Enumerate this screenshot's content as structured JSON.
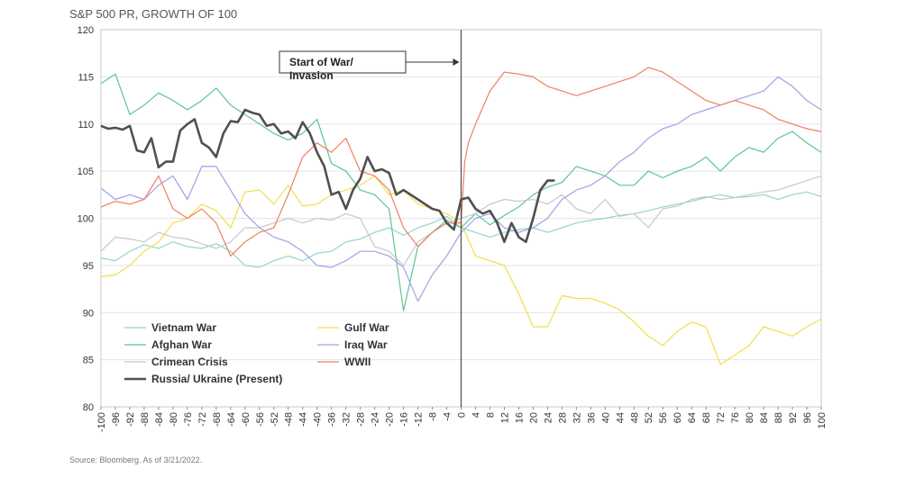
{
  "chart_data": {
    "type": "line",
    "title": "S&P 500 PR, GROWTH OF 100",
    "source": "Source: Bloomberg. As of 3/21/2022.",
    "annotation": [
      "Start of War/",
      "Invasion"
    ],
    "xlim": [
      -100,
      100
    ],
    "ylim": [
      80,
      120
    ],
    "yticks": [
      80,
      85,
      90,
      95,
      100,
      105,
      110,
      115,
      120
    ],
    "xticks": [
      -100,
      -96,
      -92,
      -88,
      -84,
      -80,
      -76,
      -72,
      -68,
      -64,
      -60,
      -56,
      -52,
      -48,
      -44,
      -40,
      -36,
      -32,
      -28,
      -24,
      -20,
      -16,
      -12,
      -8,
      -4,
      0,
      4,
      8,
      12,
      16,
      20,
      24,
      28,
      32,
      36,
      40,
      44,
      48,
      52,
      56,
      60,
      64,
      68,
      72,
      76,
      80,
      84,
      88,
      92,
      96,
      100
    ],
    "grid": "horizontal",
    "legend_position": "bottom-left",
    "series": [
      {
        "name": "Vietnam War",
        "color": "#8fd8c8",
        "width": 1.2,
        "x": [
          -100,
          -96,
          -92,
          -88,
          -84,
          -80,
          -76,
          -72,
          -68,
          -64,
          -60,
          -56,
          -52,
          -48,
          -44,
          -40,
          -36,
          -32,
          -28,
          -24,
          -20,
          -16,
          -12,
          -8,
          -4,
          0,
          4,
          8,
          12,
          16,
          20,
          24,
          28,
          32,
          36,
          40,
          44,
          48,
          52,
          56,
          60,
          64,
          68,
          72,
          76,
          80,
          84,
          88,
          92,
          96,
          100
        ],
        "y": [
          95.8,
          95.5,
          96.5,
          97.2,
          96.8,
          97.5,
          97.0,
          96.8,
          97.3,
          96.5,
          95.0,
          94.8,
          95.5,
          96.0,
          95.5,
          96.3,
          96.5,
          97.5,
          97.8,
          98.5,
          99.0,
          98.2,
          99.0,
          99.5,
          100.2,
          99.0,
          98.5,
          98.0,
          98.5,
          98.8,
          99.0,
          98.5,
          99.0,
          99.5,
          99.8,
          100.0,
          100.3,
          100.5,
          100.8,
          101.2,
          101.5,
          101.8,
          102.2,
          102.5,
          102.2,
          102.3,
          102.5,
          102.0,
          102.5,
          102.8,
          102.3
        ]
      },
      {
        "name": "Afghan War",
        "color": "#5cc494",
        "width": 1.2,
        "x": [
          -100,
          -96,
          -92,
          -88,
          -84,
          -80,
          -76,
          -72,
          -68,
          -64,
          -60,
          -56,
          -52,
          -48,
          -44,
          -40,
          -36,
          -32,
          -28,
          -24,
          -20,
          -16,
          -12,
          -8,
          -4,
          0,
          4,
          8,
          12,
          16,
          20,
          24,
          28,
          32,
          36,
          40,
          44,
          48,
          52,
          56,
          60,
          64,
          68,
          72,
          76,
          80,
          84,
          88,
          92,
          96,
          100
        ],
        "y": [
          114.3,
          115.3,
          111.0,
          112.0,
          113.3,
          112.5,
          111.5,
          112.5,
          113.8,
          112.0,
          111.0,
          110.0,
          109.0,
          108.3,
          109.0,
          110.5,
          105.8,
          105.0,
          103.0,
          102.5,
          101.0,
          90.2,
          97.0,
          98.5,
          99.8,
          99.0,
          100.5,
          99.3,
          100.3,
          101.2,
          102.5,
          103.3,
          103.8,
          105.5,
          105.0,
          104.5,
          103.5,
          103.5,
          105.0,
          104.3,
          105.0,
          105.5,
          106.5,
          105.0,
          106.5,
          107.5,
          107.0,
          108.5,
          109.2,
          108.0,
          107.0
        ]
      },
      {
        "name": "Crimean Crisis",
        "color": "#c8c8c8",
        "width": 1.2,
        "x": [
          -100,
          -96,
          -92,
          -88,
          -84,
          -80,
          -76,
          -72,
          -68,
          -64,
          -60,
          -56,
          -52,
          -48,
          -44,
          -40,
          -36,
          -32,
          -28,
          -24,
          -20,
          -16,
          -12,
          -8,
          -4,
          0,
          4,
          8,
          12,
          16,
          20,
          24,
          28,
          32,
          36,
          40,
          44,
          48,
          52,
          56,
          60,
          64,
          68,
          72,
          76,
          80,
          84,
          88,
          92,
          96,
          100
        ],
        "y": [
          96.5,
          98.0,
          97.8,
          97.5,
          98.5,
          98.0,
          97.8,
          97.3,
          96.8,
          97.5,
          99.0,
          99.0,
          99.5,
          100.0,
          99.5,
          100.0,
          99.8,
          100.5,
          100.0,
          97.0,
          96.5,
          95.0,
          97.5,
          98.5,
          99.5,
          100.0,
          100.5,
          101.5,
          102.0,
          101.8,
          102.0,
          101.5,
          102.5,
          101.0,
          100.5,
          102.0,
          100.2,
          100.5,
          99.0,
          101.0,
          101.3,
          102.0,
          102.3,
          102.0,
          102.2,
          102.5,
          102.8,
          103.0,
          103.5,
          104.0,
          104.5
        ]
      },
      {
        "name": "Gulf War",
        "color": "#f2de4b",
        "width": 1.2,
        "x": [
          -100,
          -96,
          -92,
          -88,
          -84,
          -80,
          -76,
          -72,
          -68,
          -64,
          -60,
          -56,
          -52,
          -48,
          -44,
          -40,
          -36,
          -32,
          -28,
          -24,
          -20,
          -16,
          -12,
          -8,
          -4,
          0,
          4,
          8,
          12,
          16,
          20,
          24,
          28,
          32,
          36,
          40,
          44,
          48,
          52,
          56,
          60,
          64,
          68,
          72,
          76,
          80,
          84,
          88,
          92,
          96,
          100
        ],
        "y": [
          93.8,
          94.0,
          95.0,
          96.5,
          97.5,
          99.5,
          100.0,
          101.5,
          100.8,
          99.0,
          102.8,
          103.0,
          101.5,
          103.5,
          101.3,
          101.5,
          102.5,
          103.0,
          103.5,
          104.5,
          102.5,
          103.0,
          101.5,
          101.0,
          100.5,
          99.5,
          96.0,
          95.5,
          95.0,
          92.0,
          88.5,
          88.5,
          91.8,
          91.5,
          91.5,
          91.0,
          90.3,
          89.0,
          87.5,
          86.5,
          88.0,
          89.0,
          88.5,
          84.5,
          85.5,
          86.5,
          88.5,
          88.0,
          87.5,
          88.5,
          89.3
        ]
      },
      {
        "name": "Iraq War",
        "color": "#a59ee8",
        "width": 1.2,
        "x": [
          -100,
          -96,
          -92,
          -88,
          -84,
          -80,
          -76,
          -72,
          -68,
          -64,
          -60,
          -56,
          -52,
          -48,
          -44,
          -40,
          -36,
          -32,
          -28,
          -24,
          -20,
          -16,
          -12,
          -8,
          -4,
          0,
          4,
          8,
          12,
          16,
          20,
          24,
          28,
          32,
          36,
          40,
          44,
          48,
          52,
          56,
          60,
          64,
          68,
          72,
          76,
          80,
          84,
          88,
          92,
          96,
          100
        ],
        "y": [
          103.2,
          102.0,
          102.5,
          102.0,
          103.5,
          104.5,
          102.0,
          105.5,
          105.5,
          103.0,
          100.5,
          99.0,
          98.0,
          97.5,
          96.5,
          95.0,
          94.8,
          95.5,
          96.5,
          96.5,
          96.0,
          94.8,
          91.2,
          94.0,
          96.0,
          98.5,
          100.0,
          100.5,
          99.0,
          98.5,
          99.0,
          100.0,
          102.0,
          103.0,
          103.5,
          104.5,
          106.0,
          107.0,
          108.5,
          109.5,
          110.0,
          111.0,
          111.5,
          112.0,
          112.5,
          113.0,
          113.5,
          115.0,
          114.0,
          112.5,
          111.5
        ]
      },
      {
        "name": "WWII",
        "color": "#f08060",
        "width": 1.2,
        "x": [
          -100,
          -96,
          -92,
          -88,
          -84,
          -80,
          -76,
          -72,
          -68,
          -64,
          -60,
          -56,
          -52,
          -48,
          -44,
          -40,
          -36,
          -32,
          -28,
          -24,
          -20,
          -16,
          -12,
          -8,
          -4,
          0,
          1,
          2,
          4,
          8,
          12,
          16,
          20,
          24,
          28,
          32,
          36,
          40,
          44,
          48,
          52,
          56,
          60,
          64,
          68,
          72,
          76,
          80,
          84,
          88,
          92,
          96,
          100
        ],
        "y": [
          101.2,
          101.8,
          101.5,
          102.0,
          104.5,
          101.0,
          100.0,
          101.0,
          99.5,
          96.0,
          97.5,
          98.5,
          99.0,
          102.5,
          106.5,
          108.0,
          107.0,
          108.5,
          105.0,
          104.5,
          103.0,
          99.0,
          97.0,
          98.5,
          99.5,
          99.5,
          106.0,
          108.0,
          110.0,
          113.5,
          115.5,
          115.3,
          115.0,
          114.0,
          113.5,
          113.0,
          113.5,
          114.0,
          114.5,
          115.0,
          116.0,
          115.5,
          114.5,
          113.5,
          112.5,
          112.0,
          112.5,
          112.0,
          111.5,
          110.5,
          110.0,
          109.5,
          109.2
        ]
      },
      {
        "name": "Russia/ Ukraine (Present)",
        "color": "#505050",
        "width": 2.6,
        "x": [
          -100,
          -98,
          -96,
          -94,
          -92,
          -90,
          -88,
          -86,
          -84,
          -82,
          -80,
          -78,
          -76,
          -74,
          -72,
          -70,
          -68,
          -66,
          -64,
          -62,
          -60,
          -58,
          -56,
          -54,
          -52,
          -50,
          -48,
          -46,
          -44,
          -42,
          -40,
          -38,
          -36,
          -34,
          -32,
          -30,
          -28,
          -26,
          -24,
          -22,
          -20,
          -18,
          -16,
          -14,
          -12,
          -10,
          -8,
          -6,
          -4,
          -2,
          0,
          2,
          4,
          6,
          8,
          10,
          12,
          14,
          16,
          18,
          20,
          22,
          24,
          26
        ],
        "y": [
          109.8,
          109.5,
          109.6,
          109.4,
          109.8,
          107.2,
          107.0,
          108.5,
          105.4,
          106.0,
          106.0,
          109.3,
          110.0,
          110.5,
          108.0,
          107.5,
          106.5,
          109.0,
          110.3,
          110.2,
          111.5,
          111.2,
          111.0,
          109.8,
          110.0,
          109.0,
          109.2,
          108.5,
          110.2,
          109.0,
          107.0,
          105.5,
          102.5,
          102.8,
          101.0,
          103.0,
          104.2,
          106.5,
          105.0,
          105.2,
          104.8,
          102.5,
          103.0,
          102.5,
          102.0,
          101.5,
          101.0,
          100.8,
          99.5,
          98.8,
          102.0,
          102.2,
          101.0,
          100.5,
          100.8,
          99.5,
          97.5,
          99.5,
          98.0,
          97.5,
          100.0,
          103.0,
          104.0,
          104.0
        ]
      }
    ]
  }
}
